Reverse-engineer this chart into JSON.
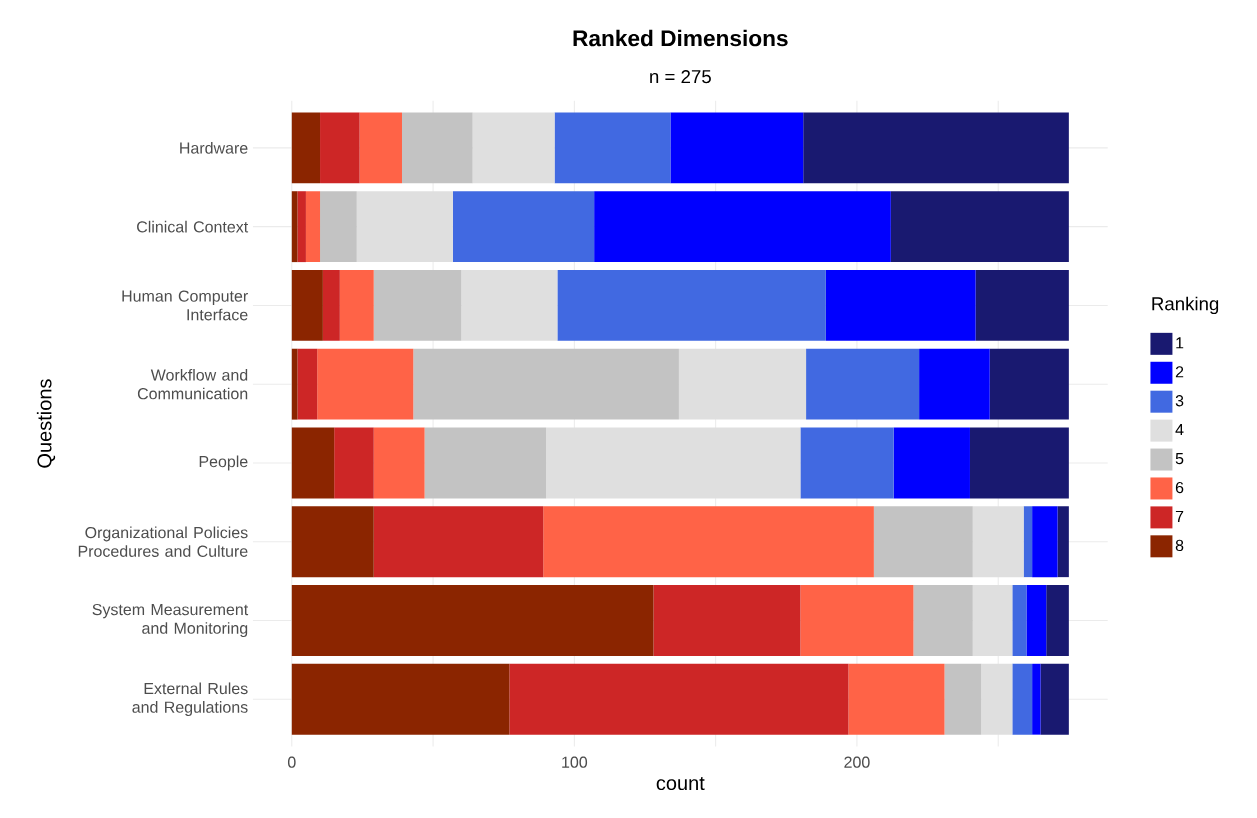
{
  "chart_data": {
    "type": "bar",
    "orientation": "horizontal",
    "stacked": true,
    "title": "Ranked Dimensions",
    "subtitle": "n = 275",
    "xlabel": "count",
    "ylabel": "Questions",
    "legend_title": "Ranking",
    "categories": [
      "Hardware",
      "Clinical Context",
      "Human Computer Interface",
      "Workflow and Communication",
      "People",
      "Organizational Policies Procedures and Culture",
      "System Measurement and Monitoring",
      "External Rules and Regulations"
    ],
    "series": [
      {
        "name": "8",
        "color": "#8b2500",
        "values": [
          10,
          2,
          11,
          2,
          15,
          29,
          128,
          77
        ]
      },
      {
        "name": "7",
        "color": "#cd2626",
        "values": [
          14,
          3,
          6,
          7,
          14,
          60,
          52,
          120
        ]
      },
      {
        "name": "6",
        "color": "#ff6347",
        "values": [
          15,
          5,
          12,
          34,
          18,
          117,
          40,
          34
        ]
      },
      {
        "name": "5",
        "color": "#c3c3c3",
        "values": [
          25,
          13,
          31,
          94,
          43,
          35,
          21,
          13
        ]
      },
      {
        "name": "4",
        "color": "#dfdfdf",
        "values": [
          29,
          34,
          34,
          45,
          90,
          18,
          14,
          11
        ]
      },
      {
        "name": "3",
        "color": "#4169e1",
        "values": [
          41,
          50,
          95,
          40,
          33,
          3,
          5,
          7
        ]
      },
      {
        "name": "2",
        "color": "#0000ff",
        "values": [
          47,
          105,
          53,
          25,
          27,
          9,
          7,
          3
        ]
      },
      {
        "name": "1",
        "color": "#191970",
        "values": [
          94,
          63,
          33,
          28,
          35,
          4,
          8,
          10
        ]
      }
    ],
    "xlim": [
      -13.75,
      288.75
    ],
    "xticks": [
      0,
      {
        "value": 50,
        "label": null
      },
      100,
      {
        "value": 150,
        "label": null
      },
      200,
      {
        "value": 250,
        "label": null
      }
    ],
    "grid": true,
    "legend": "right"
  }
}
